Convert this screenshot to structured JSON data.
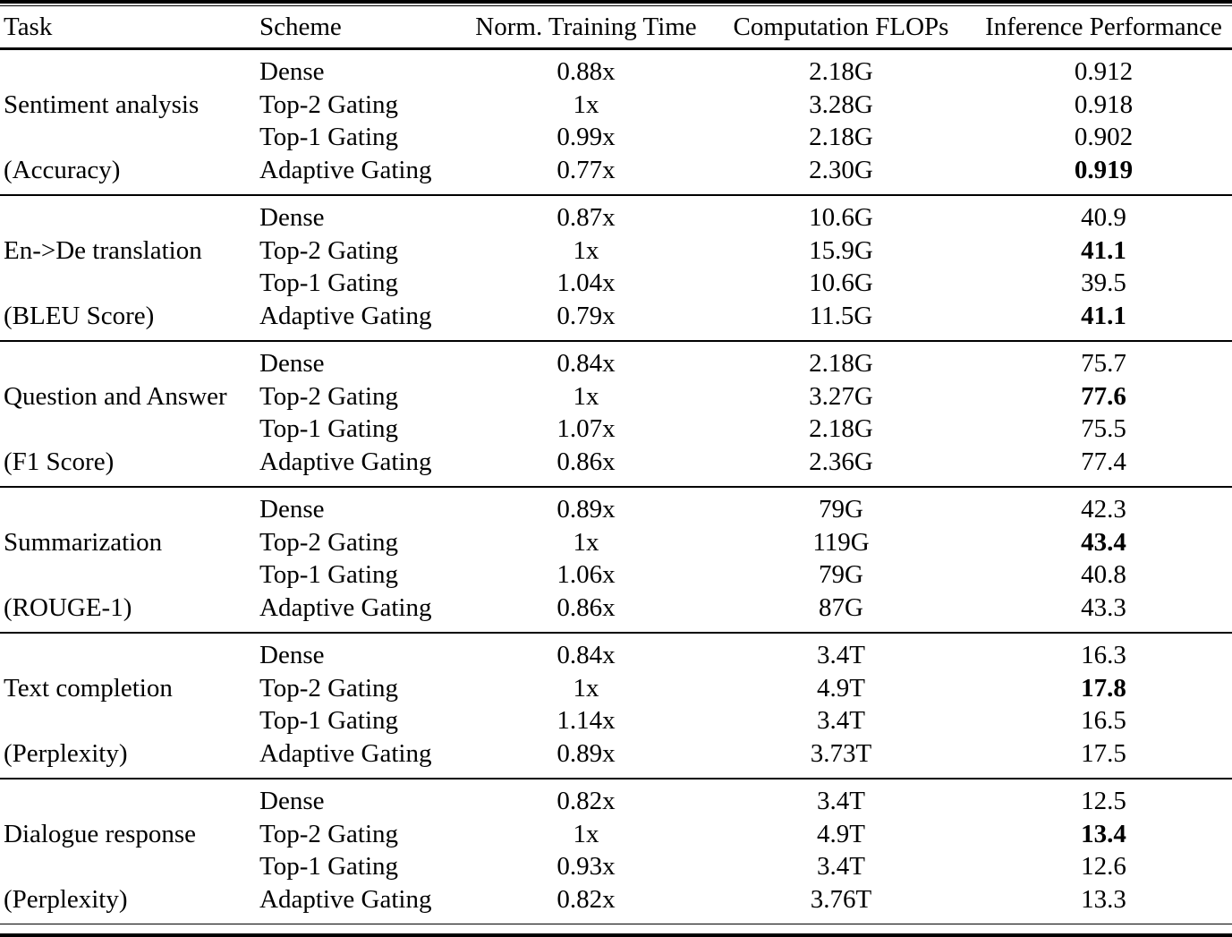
{
  "colors": {
    "background": "#ffffff",
    "text": "#000000",
    "rules": "#000000"
  },
  "table": {
    "columns": {
      "task": "Task",
      "scheme": "Scheme",
      "time": "Norm. Training Time",
      "flops": "Computation FLOPs",
      "perf": "Inference Performance"
    },
    "groups": [
      {
        "task": "Sentiment analysis",
        "metric": "(Accuracy)",
        "rows": [
          {
            "scheme": "Dense",
            "time": "0.88x",
            "flops": "2.18G",
            "perf": "0.912",
            "bold": false
          },
          {
            "scheme": "Top-2 Gating",
            "time": "1x",
            "flops": "3.28G",
            "perf": "0.918",
            "bold": false
          },
          {
            "scheme": "Top-1 Gating",
            "time": "0.99x",
            "flops": "2.18G",
            "perf": "0.902",
            "bold": false
          },
          {
            "scheme": "Adaptive Gating",
            "time": "0.77x",
            "flops": "2.30G",
            "perf": "0.919",
            "bold": true
          }
        ]
      },
      {
        "task": "En->De translation",
        "metric": "(BLEU Score)",
        "rows": [
          {
            "scheme": "Dense",
            "time": "0.87x",
            "flops": "10.6G",
            "perf": "40.9",
            "bold": false
          },
          {
            "scheme": "Top-2 Gating",
            "time": "1x",
            "flops": "15.9G",
            "perf": "41.1",
            "bold": true
          },
          {
            "scheme": "Top-1 Gating",
            "time": "1.04x",
            "flops": "10.6G",
            "perf": "39.5",
            "bold": false
          },
          {
            "scheme": "Adaptive Gating",
            "time": "0.79x",
            "flops": "11.5G",
            "perf": "41.1",
            "bold": true
          }
        ]
      },
      {
        "task": "Question and Answer",
        "metric": "(F1 Score)",
        "rows": [
          {
            "scheme": "Dense",
            "time": "0.84x",
            "flops": "2.18G",
            "perf": "75.7",
            "bold": false
          },
          {
            "scheme": "Top-2 Gating",
            "time": "1x",
            "flops": "3.27G",
            "perf": "77.6",
            "bold": true
          },
          {
            "scheme": "Top-1 Gating",
            "time": "1.07x",
            "flops": "2.18G",
            "perf": "75.5",
            "bold": false
          },
          {
            "scheme": "Adaptive Gating",
            "time": "0.86x",
            "flops": "2.36G",
            "perf": "77.4",
            "bold": false
          }
        ]
      },
      {
        "task": "Summarization",
        "metric": "(ROUGE-1)",
        "rows": [
          {
            "scheme": "Dense",
            "time": "0.89x",
            "flops": "79G",
            "perf": "42.3",
            "bold": false
          },
          {
            "scheme": "Top-2 Gating",
            "time": "1x",
            "flops": "119G",
            "perf": "43.4",
            "bold": true
          },
          {
            "scheme": "Top-1 Gating",
            "time": "1.06x",
            "flops": "79G",
            "perf": "40.8",
            "bold": false
          },
          {
            "scheme": "Adaptive Gating",
            "time": "0.86x",
            "flops": "87G",
            "perf": "43.3",
            "bold": false
          }
        ]
      },
      {
        "task": "Text completion",
        "metric": "(Perplexity)",
        "rows": [
          {
            "scheme": "Dense",
            "time": "0.84x",
            "flops": "3.4T",
            "perf": "16.3",
            "bold": false
          },
          {
            "scheme": "Top-2 Gating",
            "time": "1x",
            "flops": "4.9T",
            "perf": "17.8",
            "bold": true
          },
          {
            "scheme": "Top-1 Gating",
            "time": "1.14x",
            "flops": "3.4T",
            "perf": "16.5",
            "bold": false
          },
          {
            "scheme": "Adaptive Gating",
            "time": "0.89x",
            "flops": "3.73T",
            "perf": "17.5",
            "bold": false
          }
        ]
      },
      {
        "task": "Dialogue response",
        "metric": "(Perplexity)",
        "rows": [
          {
            "scheme": "Dense",
            "time": "0.82x",
            "flops": "3.4T",
            "perf": "12.5",
            "bold": false
          },
          {
            "scheme": "Top-2 Gating",
            "time": "1x",
            "flops": "4.9T",
            "perf": "13.4",
            "bold": true
          },
          {
            "scheme": "Top-1 Gating",
            "time": "0.93x",
            "flops": "3.4T",
            "perf": "12.6",
            "bold": false
          },
          {
            "scheme": "Adaptive Gating",
            "time": "0.82x",
            "flops": "3.76T",
            "perf": "13.3",
            "bold": false
          }
        ]
      }
    ]
  }
}
